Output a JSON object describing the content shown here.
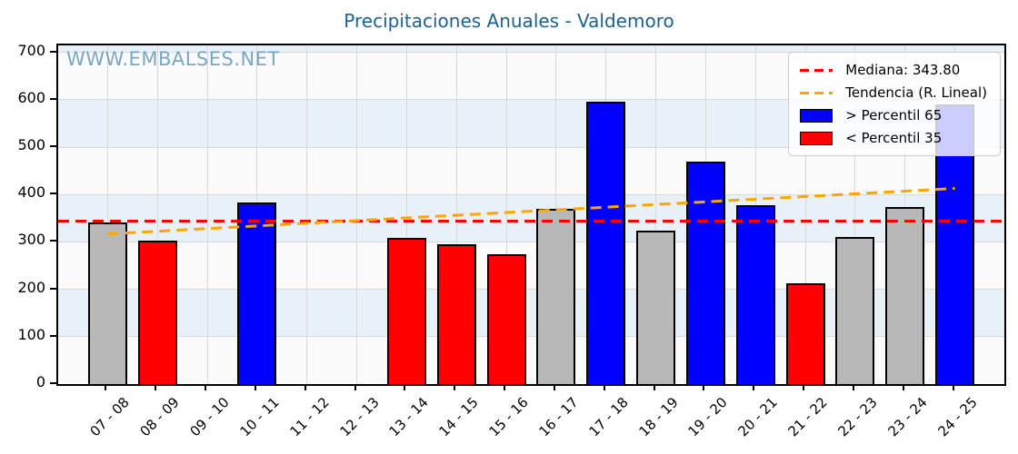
{
  "chart_data": {
    "type": "bar",
    "title": "Precipitaciones Anuales - Valdemoro",
    "watermark": "WWW.EMBALSES.NET",
    "xlabel": "",
    "ylabel": "",
    "ylim": [
      0,
      715
    ],
    "yticks": [
      0,
      100,
      200,
      300,
      400,
      500,
      600,
      700
    ],
    "grid": "on",
    "legend_position": "top-right",
    "categories": [
      "07 - 08",
      "08 - 09",
      "09 - 10",
      "10 - 11",
      "11 - 12",
      "12 - 13",
      "13 - 14",
      "14 - 15",
      "15 - 16",
      "16 - 17",
      "17 - 18",
      "18 - 19",
      "19 - 20",
      "20 - 21",
      "21 - 22",
      "22 - 23",
      "23 - 24",
      "24 - 25"
    ],
    "bars": [
      {
        "category": "07 - 08",
        "value": 341,
        "class": "normal"
      },
      {
        "category": "08 - 09",
        "value": 303,
        "class": "below_p35"
      },
      {
        "category": "09 - 10",
        "value": null,
        "class": null
      },
      {
        "category": "10 - 11",
        "value": 384,
        "class": "above_p65"
      },
      {
        "category": "11 - 12",
        "value": null,
        "class": null
      },
      {
        "category": "12 - 13",
        "value": null,
        "class": null
      },
      {
        "category": "13 - 14",
        "value": 308,
        "class": "below_p35"
      },
      {
        "category": "14 - 15",
        "value": 296,
        "class": "below_p35"
      },
      {
        "category": "15 - 16",
        "value": 275,
        "class": "below_p35"
      },
      {
        "category": "16 - 17",
        "value": 370,
        "class": "normal"
      },
      {
        "category": "17 - 18",
        "value": 596,
        "class": "above_p65"
      },
      {
        "category": "18 - 19",
        "value": 324,
        "class": "normal"
      },
      {
        "category": "19 - 20",
        "value": 470,
        "class": "above_p65"
      },
      {
        "category": "20 - 21",
        "value": 378,
        "class": "above_p65"
      },
      {
        "category": "21 - 22",
        "value": 212,
        "class": "below_p35"
      },
      {
        "category": "22 - 23",
        "value": 310,
        "class": "normal"
      },
      {
        "category": "23 - 24",
        "value": 373,
        "class": "normal"
      },
      {
        "category": "24 - 25",
        "value": 590,
        "class": "above_p65"
      }
    ],
    "median": {
      "label": "Mediana: 343.80",
      "value": 343.8
    },
    "trend": {
      "label": "Tendencia (R. Lineal)",
      "start_value": 317,
      "end_value": 413
    },
    "legend": [
      {
        "swatch": "dashed",
        "color_key": "median_line",
        "label": "Mediana: 343.80"
      },
      {
        "swatch": "dashed",
        "color_key": "trend_line",
        "label": "Tendencia (R. Lineal)"
      },
      {
        "swatch": "box",
        "color_key": "above_p65",
        "label": "> Percentil 65"
      },
      {
        "swatch": "box",
        "color_key": "below_p35",
        "label": "< Percentil 35"
      }
    ],
    "colors": {
      "above_p65": "#0000ff",
      "below_p35": "#ff0000",
      "normal": "#b8b8b8",
      "bar_edge": "#000000",
      "median_line": "#ff0000",
      "trend_line": "#ffa500",
      "band_light": "#e8f1f7",
      "band_white": "#fafafa",
      "grid": "#d9d9d9",
      "title": "#1f618d",
      "watermark": "#6d9dc2",
      "axis": "#000000"
    }
  }
}
